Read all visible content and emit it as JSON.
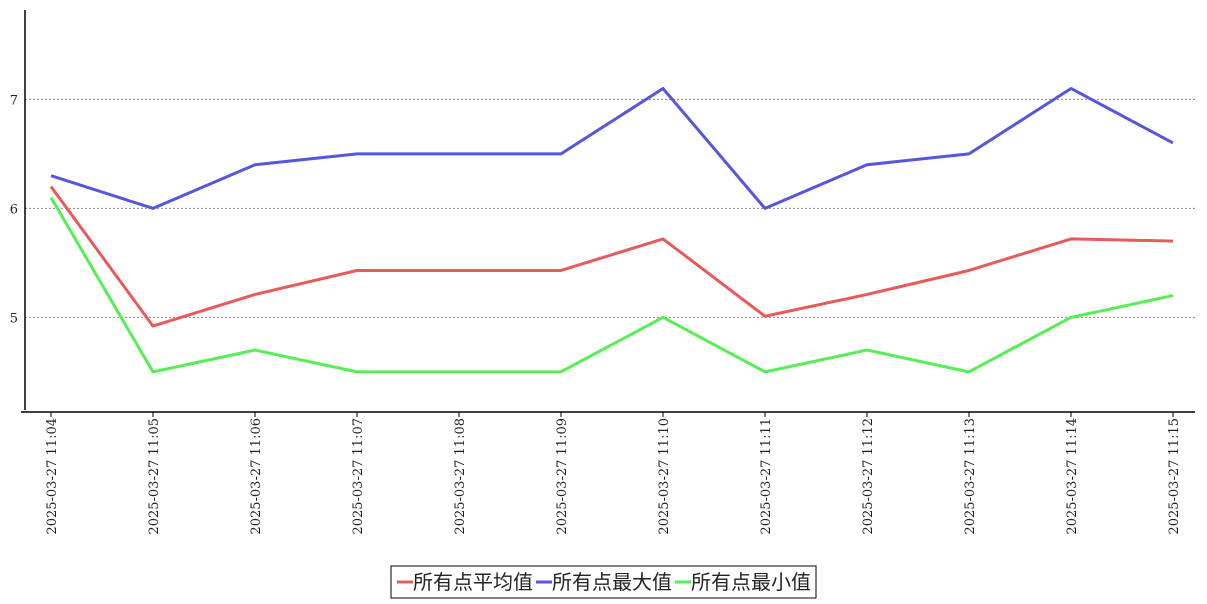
{
  "chart_data": {
    "type": "line",
    "categories": [
      "2025-03-27 11:04",
      "2025-03-27 11:05",
      "2025-03-27 11:06",
      "2025-03-27 11:07",
      "2025-03-27 11:08",
      "2025-03-27 11:09",
      "2025-03-27 11:10",
      "2025-03-27 11:11",
      "2025-03-27 11:12",
      "2025-03-27 11:13",
      "2025-03-27 11:14",
      "2025-03-27 11:15"
    ],
    "series": [
      {
        "name": "所有点平均值",
        "color": "#e85a5a",
        "values": [
          6.2,
          4.92,
          5.21,
          5.43,
          5.43,
          5.43,
          5.72,
          5.01,
          5.21,
          5.43,
          5.72,
          5.7
        ]
      },
      {
        "name": "所有点最大值",
        "color": "#5555dd",
        "values": [
          6.3,
          6.0,
          6.4,
          6.5,
          6.5,
          6.5,
          7.1,
          6.0,
          6.4,
          6.5,
          7.1,
          6.6
        ]
      },
      {
        "name": "所有点最小值",
        "color": "#55ee55",
        "values": [
          6.1,
          4.5,
          4.7,
          4.5,
          4.5,
          4.5,
          5.0,
          4.5,
          4.7,
          4.5,
          5.0,
          5.2
        ]
      }
    ],
    "ylim": [
      4.15,
      7.82
    ],
    "yticks": [
      5,
      6,
      7
    ],
    "grid": true,
    "legend": "bottom"
  }
}
